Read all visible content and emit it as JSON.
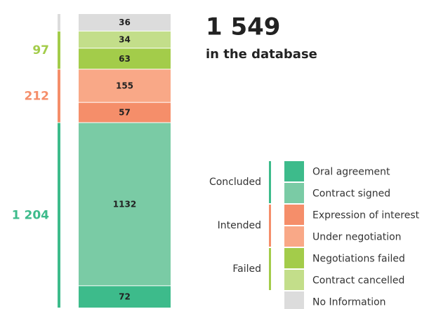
{
  "chart_data": {
    "type": "stacked-column",
    "title": "1 549",
    "subtitle": "in the database",
    "groups": [
      {
        "name": "Concluded",
        "value": 1204,
        "label": "1 204",
        "color": "#3dbb8b",
        "segments": [
          {
            "name": "Oral agreement",
            "color": "#3dbb8b",
            "value": 72
          },
          {
            "name": "Contract signed",
            "color": "#7acba5",
            "value": 1132
          }
        ]
      },
      {
        "name": "Intended",
        "value": 212,
        "label": "212",
        "color": "#f58e6a",
        "segments": [
          {
            "name": "Expression of interest",
            "color": "#f58e6a",
            "value": 57
          },
          {
            "name": "Under negotiation",
            "color": "#f9a887",
            "value": 155
          }
        ]
      },
      {
        "name": "Failed",
        "value": 97,
        "label": "97",
        "color": "#a3cc4a",
        "segments": [
          {
            "name": "Negotiations failed",
            "color": "#a3cc4a",
            "value": 63
          },
          {
            "name": "Contract cancelled",
            "color": "#c3de8a",
            "value": 34
          }
        ]
      }
    ],
    "other": {
      "name": "No Information",
      "color": "#dcdcdc",
      "value": 36
    }
  }
}
